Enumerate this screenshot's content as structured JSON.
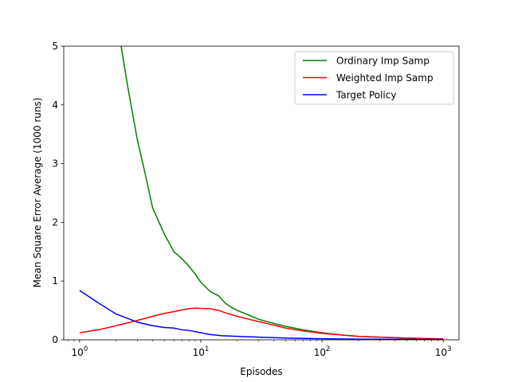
{
  "chart_data": {
    "type": "line",
    "title": "",
    "xlabel": "Episodes",
    "ylabel": "Mean Square Error Average (1000 runs)",
    "xscale": "log",
    "xlim": [
      0.74,
      1350
    ],
    "ylim": [
      0,
      5
    ],
    "grid": false,
    "legend_position": "top-right",
    "x_ticks": [
      {
        "value": 1,
        "base": "10",
        "exp": "0"
      },
      {
        "value": 10,
        "base": "10",
        "exp": "1"
      },
      {
        "value": 100,
        "base": "10",
        "exp": "2"
      },
      {
        "value": 1000,
        "base": "10",
        "exp": "3"
      }
    ],
    "y_ticks": [
      0,
      1,
      2,
      3,
      4,
      5
    ],
    "series": [
      {
        "name": "Ordinary Imp Samp",
        "color": "#008000",
        "points": [
          [
            2.2,
            5.0
          ],
          [
            2.5,
            4.3
          ],
          [
            3,
            3.4
          ],
          [
            3.5,
            2.8
          ],
          [
            4,
            2.25
          ],
          [
            5,
            1.8
          ],
          [
            6,
            1.5
          ],
          [
            7,
            1.38
          ],
          [
            8,
            1.25
          ],
          [
            9,
            1.12
          ],
          [
            10,
            0.98
          ],
          [
            12,
            0.82
          ],
          [
            14,
            0.75
          ],
          [
            16,
            0.62
          ],
          [
            18,
            0.55
          ],
          [
            20,
            0.5
          ],
          [
            25,
            0.42
          ],
          [
            30,
            0.35
          ],
          [
            40,
            0.28
          ],
          [
            50,
            0.23
          ],
          [
            70,
            0.17
          ],
          [
            100,
            0.12
          ],
          [
            150,
            0.08
          ],
          [
            200,
            0.06
          ],
          [
            300,
            0.045
          ],
          [
            500,
            0.03
          ],
          [
            700,
            0.022
          ],
          [
            1000,
            0.016
          ]
        ]
      },
      {
        "name": "Weighted Imp Samp",
        "color": "#ff0000",
        "points": [
          [
            1,
            0.12
          ],
          [
            1.5,
            0.18
          ],
          [
            2,
            0.24
          ],
          [
            3,
            0.33
          ],
          [
            4,
            0.4
          ],
          [
            5,
            0.45
          ],
          [
            6,
            0.48
          ],
          [
            7,
            0.51
          ],
          [
            8,
            0.53
          ],
          [
            9,
            0.54
          ],
          [
            10,
            0.535
          ],
          [
            12,
            0.53
          ],
          [
            14,
            0.5
          ],
          [
            16,
            0.46
          ],
          [
            20,
            0.4
          ],
          [
            25,
            0.35
          ],
          [
            30,
            0.31
          ],
          [
            40,
            0.25
          ],
          [
            50,
            0.2
          ],
          [
            70,
            0.15
          ],
          [
            100,
            0.11
          ],
          [
            150,
            0.08
          ],
          [
            200,
            0.06
          ],
          [
            300,
            0.045
          ],
          [
            500,
            0.03
          ],
          [
            700,
            0.022
          ],
          [
            1000,
            0.016
          ]
        ]
      },
      {
        "name": "Target Policy",
        "color": "#0000ff",
        "points": [
          [
            1,
            0.84
          ],
          [
            1.5,
            0.6
          ],
          [
            2,
            0.44
          ],
          [
            3,
            0.3
          ],
          [
            4,
            0.24
          ],
          [
            5,
            0.21
          ],
          [
            6,
            0.2
          ],
          [
            7,
            0.17
          ],
          [
            8,
            0.16
          ],
          [
            10,
            0.12
          ],
          [
            12,
            0.09
          ],
          [
            15,
            0.07
          ],
          [
            20,
            0.06
          ],
          [
            30,
            0.045
          ],
          [
            50,
            0.03
          ],
          [
            100,
            0.018
          ],
          [
            200,
            0.012
          ],
          [
            500,
            0.008
          ],
          [
            1000,
            0.006
          ]
        ]
      }
    ]
  }
}
